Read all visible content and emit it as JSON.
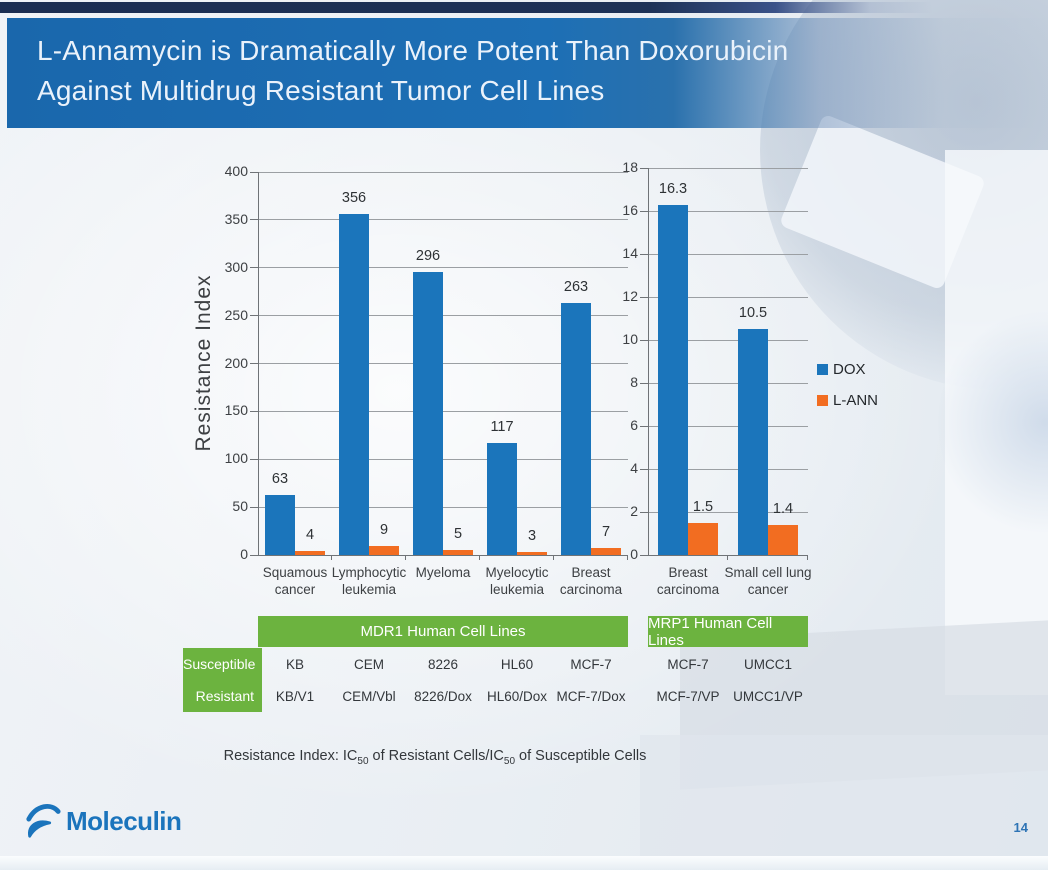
{
  "header": {
    "title_line1": "L-Annamycin is Dramatically More Potent Than Doxorubicin",
    "title_line2": "Against Multidrug Resistant Tumor Cell Lines"
  },
  "chart_data": [
    {
      "type": "bar",
      "title": "MDR1 Human Cell Lines",
      "ylabel": "Resistance Index",
      "ylim": [
        0,
        400
      ],
      "ytick_step": 50,
      "grid": true,
      "legend_position": "right",
      "categories": [
        [
          "Squamous",
          "cancer"
        ],
        [
          "Lymphocytic",
          "leukemia"
        ],
        [
          "Myeloma"
        ],
        [
          "Myelocytic",
          "leukemia"
        ],
        [
          "Breast",
          "carcinoma"
        ]
      ],
      "series": [
        {
          "name": "DOX",
          "color": "#1b75bb",
          "values": [
            63,
            356,
            296,
            117,
            263
          ]
        },
        {
          "name": "L-ANN",
          "color": "#f26d21",
          "values": [
            4,
            9,
            5,
            3,
            7
          ]
        }
      ]
    },
    {
      "type": "bar",
      "title": "MRP1 Human Cell Lines",
      "ylabel": "",
      "ylim": [
        0,
        18
      ],
      "ytick_step": 2,
      "grid": true,
      "legend_position": "right",
      "categories": [
        [
          "Breast",
          "carcinoma"
        ],
        [
          "Small cell lung",
          "cancer"
        ]
      ],
      "series": [
        {
          "name": "DOX",
          "color": "#1b75bb",
          "values": [
            16.3,
            10.5
          ]
        },
        {
          "name": "L-ANN",
          "color": "#f26d21",
          "values": [
            1.5,
            1.4
          ]
        }
      ]
    }
  ],
  "legend": {
    "position": "right",
    "items": [
      {
        "label": "DOX",
        "color": "#1b75bb"
      },
      {
        "label": "L-ANN",
        "color": "#f26d21"
      }
    ]
  },
  "table": {
    "header_color": "#6cb33f",
    "row_headers": [
      "Susceptible",
      "Resistant"
    ],
    "groups": [
      {
        "header": "MDR1 Human Cell Lines",
        "columns": [
          [
            "KB",
            "KB/V1"
          ],
          [
            "CEM",
            "CEM/Vbl"
          ],
          [
            "8226",
            "8226/Dox"
          ],
          [
            "HL60",
            "HL60/Dox"
          ],
          [
            "MCF-7",
            "MCF-7/Dox"
          ]
        ]
      },
      {
        "header": "MRP1 Human Cell Lines",
        "columns": [
          [
            "MCF-7",
            "MCF-7/VP"
          ],
          [
            "UMCC1",
            "UMCC1/VP"
          ]
        ]
      }
    ]
  },
  "footnote": {
    "prefix": "Resistance Index: IC",
    "sub1": "50",
    "middle": " of Resistant Cells/IC",
    "sub2": "50",
    "suffix": " of Susceptible Cells"
  },
  "footer": {
    "logo_text": "Moleculin",
    "page_number": "14"
  },
  "colors": {
    "dox": "#1b75bb",
    "lann": "#f26d21",
    "green": "#6cb33f",
    "banner_blue": "#1d6fb5",
    "logo_blue": "#1b74bc"
  }
}
